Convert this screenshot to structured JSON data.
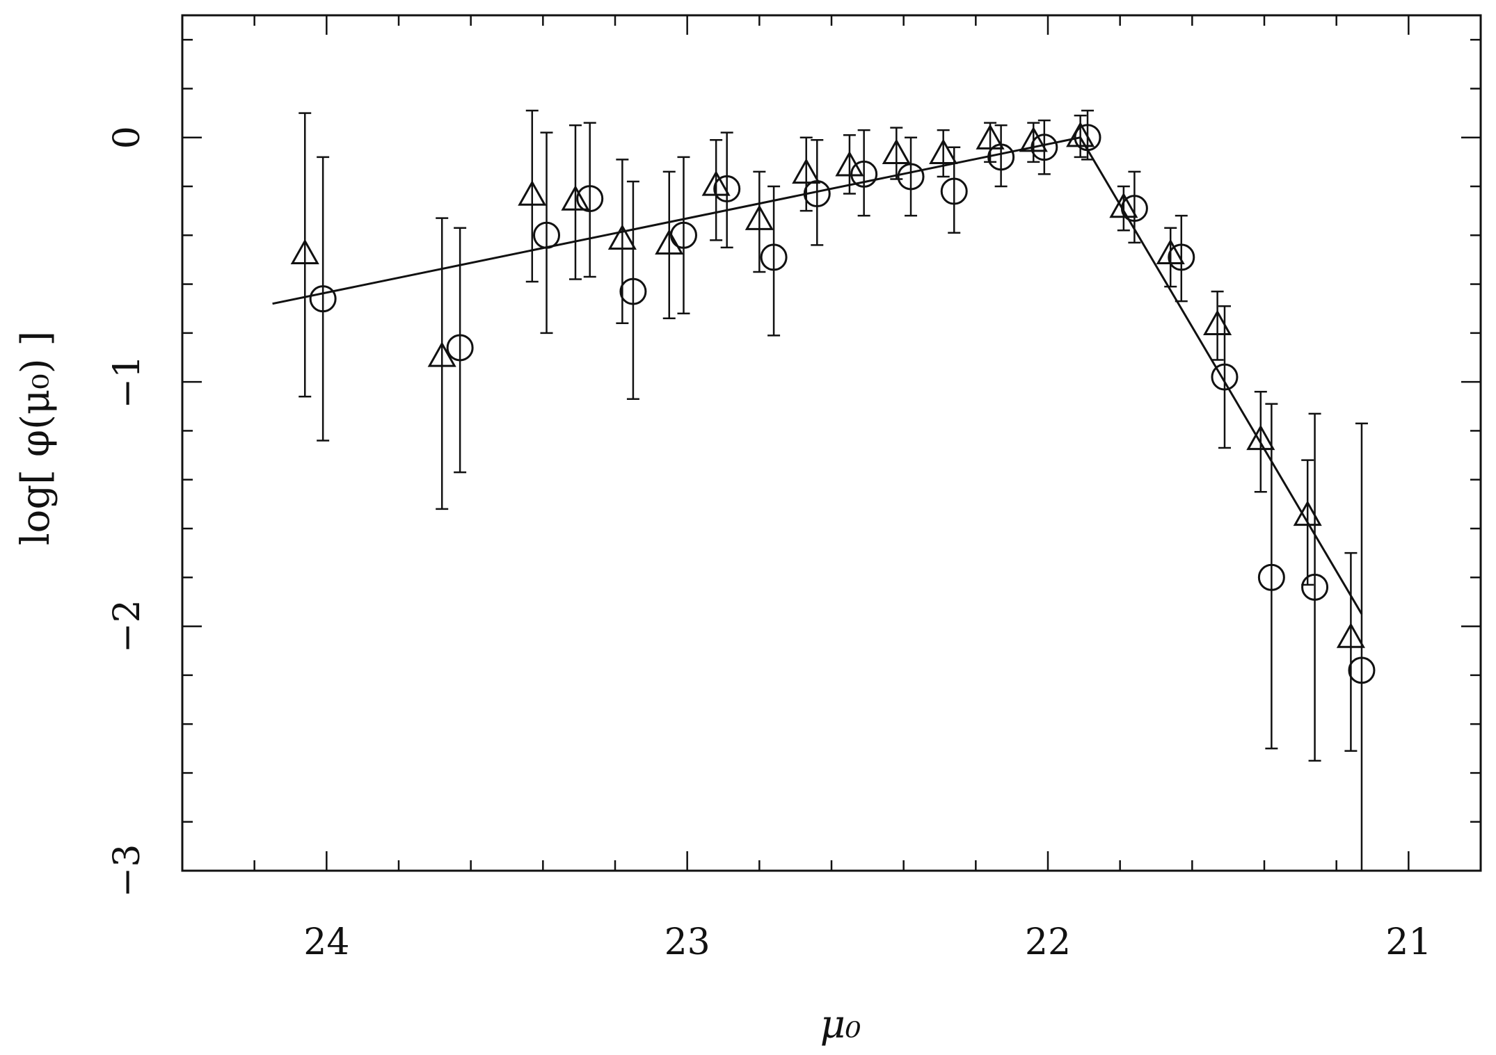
{
  "chart_data": {
    "type": "scatter",
    "title": "",
    "xlabel": "μ₀",
    "ylabel": "log[ φ(μ₀) ]",
    "xlim": [
      24.4,
      20.8
    ],
    "ylim": [
      -3,
      0.5
    ],
    "x_reversed": true,
    "grid": false,
    "legend": "none",
    "x_ticks": [
      24,
      23,
      22,
      21
    ],
    "x_tick_labels": [
      "24",
      "23",
      "22",
      "21"
    ],
    "y_ticks": [
      0,
      -1,
      -2,
      -3
    ],
    "y_tick_labels": [
      "0",
      "−1",
      "−2",
      "−3"
    ],
    "series": [
      {
        "marker": "triangle",
        "points": [
          {
            "x": 24.06,
            "y": -0.48,
            "ylo": -1.06,
            "yhi": 0.1
          },
          {
            "x": 23.68,
            "y": -0.9,
            "ylo": -1.52,
            "yhi": -0.33
          },
          {
            "x": 23.43,
            "y": -0.24,
            "ylo": -0.59,
            "yhi": 0.11
          },
          {
            "x": 23.31,
            "y": -0.26,
            "ylo": -0.58,
            "yhi": 0.05
          },
          {
            "x": 23.18,
            "y": -0.42,
            "ylo": -0.76,
            "yhi": -0.09
          },
          {
            "x": 23.05,
            "y": -0.44,
            "ylo": -0.74,
            "yhi": -0.14
          },
          {
            "x": 22.92,
            "y": -0.2,
            "ylo": -0.42,
            "yhi": -0.01
          },
          {
            "x": 22.8,
            "y": -0.34,
            "ylo": -0.55,
            "yhi": -0.14
          },
          {
            "x": 22.67,
            "y": -0.15,
            "ylo": -0.3,
            "yhi": 0.0
          },
          {
            "x": 22.55,
            "y": -0.12,
            "ylo": -0.23,
            "yhi": 0.01
          },
          {
            "x": 22.42,
            "y": -0.07,
            "ylo": -0.17,
            "yhi": 0.04
          },
          {
            "x": 22.29,
            "y": -0.07,
            "ylo": -0.16,
            "yhi": 0.03
          },
          {
            "x": 22.16,
            "y": -0.01,
            "ylo": -0.1,
            "yhi": 0.06
          },
          {
            "x": 22.04,
            "y": -0.02,
            "ylo": -0.1,
            "yhi": 0.06
          },
          {
            "x": 21.91,
            "y": 0.0,
            "ylo": -0.08,
            "yhi": 0.09
          },
          {
            "x": 21.79,
            "y": -0.29,
            "ylo": -0.38,
            "yhi": -0.2
          },
          {
            "x": 21.66,
            "y": -0.48,
            "ylo": -0.61,
            "yhi": -0.37
          },
          {
            "x": 21.53,
            "y": -0.77,
            "ylo": -0.91,
            "yhi": -0.63
          },
          {
            "x": 21.41,
            "y": -1.24,
            "ylo": -1.45,
            "yhi": -1.04
          },
          {
            "x": 21.28,
            "y": -1.55,
            "ylo": -1.83,
            "yhi": -1.32
          },
          {
            "x": 21.16,
            "y": -2.05,
            "ylo": -2.51,
            "yhi": -1.7
          }
        ]
      },
      {
        "marker": "circle",
        "points": [
          {
            "x": 24.01,
            "y": -0.66,
            "ylo": -1.24,
            "yhi": -0.08
          },
          {
            "x": 23.63,
            "y": -0.86,
            "ylo": -1.37,
            "yhi": -0.37
          },
          {
            "x": 23.39,
            "y": -0.4,
            "ylo": -0.8,
            "yhi": 0.02
          },
          {
            "x": 23.27,
            "y": -0.25,
            "ylo": -0.57,
            "yhi": 0.06
          },
          {
            "x": 23.15,
            "y": -0.63,
            "ylo": -1.07,
            "yhi": -0.18
          },
          {
            "x": 23.01,
            "y": -0.4,
            "ylo": -0.72,
            "yhi": -0.08
          },
          {
            "x": 22.89,
            "y": -0.21,
            "ylo": -0.45,
            "yhi": 0.02
          },
          {
            "x": 22.76,
            "y": -0.49,
            "ylo": -0.81,
            "yhi": -0.2
          },
          {
            "x": 22.64,
            "y": -0.23,
            "ylo": -0.44,
            "yhi": -0.01
          },
          {
            "x": 22.51,
            "y": -0.15,
            "ylo": -0.32,
            "yhi": 0.03
          },
          {
            "x": 22.38,
            "y": -0.16,
            "ylo": -0.32,
            "yhi": 0.0
          },
          {
            "x": 22.26,
            "y": -0.22,
            "ylo": -0.39,
            "yhi": -0.04
          },
          {
            "x": 22.13,
            "y": -0.08,
            "ylo": -0.2,
            "yhi": 0.05
          },
          {
            "x": 22.01,
            "y": -0.04,
            "ylo": -0.15,
            "yhi": 0.07
          },
          {
            "x": 21.89,
            "y": 0.0,
            "ylo": -0.09,
            "yhi": 0.11
          },
          {
            "x": 21.76,
            "y": -0.29,
            "ylo": -0.43,
            "yhi": -0.14
          },
          {
            "x": 21.63,
            "y": -0.49,
            "ylo": -0.67,
            "yhi": -0.32
          },
          {
            "x": 21.51,
            "y": -0.98,
            "ylo": -1.27,
            "yhi": -0.69
          },
          {
            "x": 21.38,
            "y": -1.8,
            "ylo": -2.5,
            "yhi": -1.09
          },
          {
            "x": 21.26,
            "y": -1.84,
            "ylo": -2.55,
            "yhi": -1.13
          },
          {
            "x": 21.13,
            "y": -2.18,
            "ylo": -3.0,
            "yhi": -1.17
          }
        ]
      }
    ],
    "fit_line": [
      {
        "x": 24.15,
        "y": -0.68
      },
      {
        "x": 21.91,
        "y": 0.0
      },
      {
        "x": 21.13,
        "y": -1.95
      }
    ]
  }
}
